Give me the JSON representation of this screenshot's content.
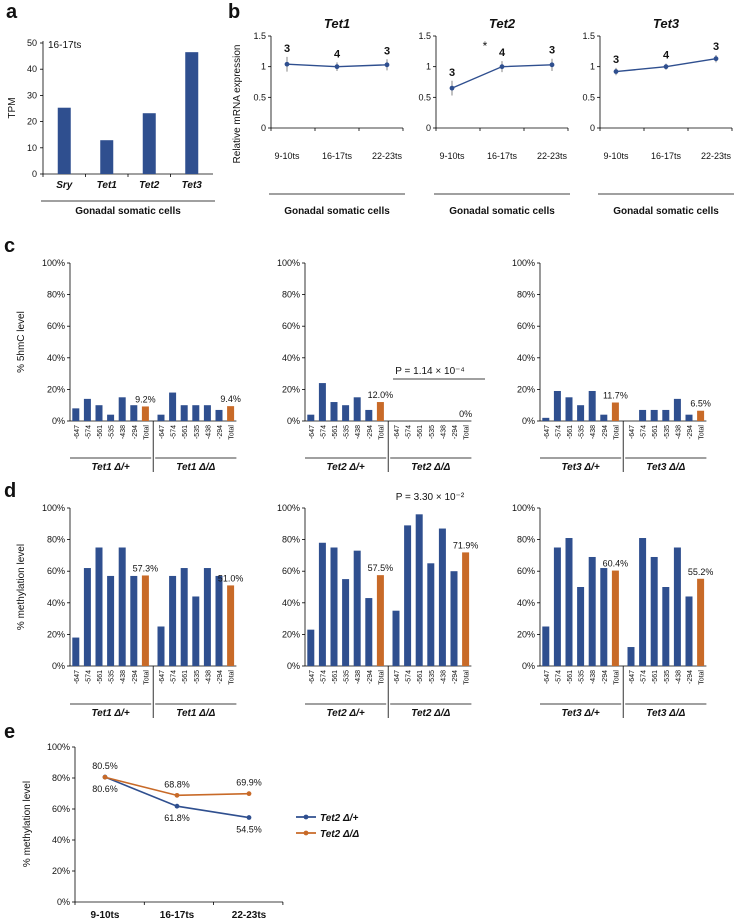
{
  "panel_letters": [
    "a",
    "b",
    "c",
    "d",
    "e"
  ],
  "colors": {
    "bar": "#2f4f8f",
    "total": "#c86a28",
    "line_het": "#2f4f8f",
    "line_ko": "#c86a28",
    "axis": "#000000"
  },
  "chart_data": [
    {
      "panel": "a",
      "type": "bar",
      "annotation": "16-17ts",
      "categories": [
        "Sry",
        "Tet1",
        "Tet2",
        "Tet3"
      ],
      "values": [
        25.3,
        12.9,
        23.2,
        46.5
      ],
      "ylabel": "TPM",
      "xlabel": "Gonadal somatic cells",
      "ylim": [
        0,
        50
      ],
      "yticks": [
        0,
        10,
        20,
        30,
        40,
        50
      ]
    },
    {
      "panel": "b",
      "type": "line",
      "ylabel": "Relative mRNA expression",
      "x": [
        "9-10ts",
        "16-17ts",
        "22-23ts"
      ],
      "xlabel": "Gonadal somatic cells",
      "ylim": [
        0,
        1.5
      ],
      "yticks": [
        "0",
        "0.5",
        "1",
        "1.5"
      ],
      "subplots": [
        {
          "title": "Tet1",
          "values": [
            1.04,
            1.0,
            1.03
          ],
          "errors": [
            0.12,
            0.07,
            0.09
          ],
          "n": [
            "3",
            "4",
            "3"
          ],
          "sig": ""
        },
        {
          "title": "Tet2",
          "values": [
            0.65,
            1.0,
            1.03
          ],
          "errors": [
            0.12,
            0.09,
            0.1
          ],
          "n": [
            "3",
            "4",
            "3"
          ],
          "sig": "*"
        },
        {
          "title": "Tet3",
          "values": [
            0.92,
            1.0,
            1.13
          ],
          "errors": [
            0.06,
            0.05,
            0.06
          ],
          "n": [
            "3",
            "4",
            "3"
          ],
          "sig": ""
        }
      ]
    },
    {
      "panel": "c",
      "type": "bar",
      "ylabel": "% 5hmC level",
      "ylim": [
        0,
        100
      ],
      "yticks": [
        "0%",
        "20%",
        "40%",
        "60%",
        "80%",
        "100%"
      ],
      "categories": [
        "-647",
        "-574",
        "-561",
        "-535",
        "-438",
        "-294",
        "Total"
      ],
      "subplots": [
        {
          "groups": [
            {
              "label": "Tet1 Δ/+",
              "values": [
                8,
                14,
                10,
                4,
                15,
                10,
                9.2
              ],
              "total_label": "9.2%"
            },
            {
              "label": "Tet1 Δ/Δ",
              "values": [
                4,
                18,
                10,
                10,
                10,
                7,
                9.4
              ],
              "total_label": "9.4%"
            }
          ]
        },
        {
          "groups": [
            {
              "label": "Tet2 Δ/+",
              "values": [
                4,
                24,
                12,
                10,
                15,
                7,
                12.0
              ],
              "total_label": "12.0%"
            },
            {
              "label": "Tet2 Δ/Δ",
              "values": [
                0,
                0,
                0,
                0,
                0,
                0,
                0
              ],
              "total_label": "0%"
            }
          ],
          "pvalue": "P = 1.14 × 10⁻⁴"
        },
        {
          "groups": [
            {
              "label": "Tet3 Δ/+",
              "values": [
                2,
                19,
                15,
                10,
                19,
                4,
                11.7
              ],
              "total_label": "11.7%"
            },
            {
              "label": "Tet3 Δ/Δ",
              "values": [
                0,
                7,
                7,
                7,
                14,
                4,
                6.5
              ],
              "total_label": "6.5%"
            }
          ]
        }
      ]
    },
    {
      "panel": "d",
      "type": "bar",
      "ylabel": "% methylation level",
      "ylim": [
        0,
        100
      ],
      "yticks": [
        "0%",
        "20%",
        "40%",
        "60%",
        "80%",
        "100%"
      ],
      "categories": [
        "-647",
        "-574",
        "-561",
        "-535",
        "-438",
        "-294",
        "Total"
      ],
      "subplots": [
        {
          "groups": [
            {
              "label": "Tet1 Δ/+",
              "values": [
                18,
                62,
                75,
                57,
                75,
                57,
                57.3
              ],
              "total_label": "57.3%"
            },
            {
              "label": "Tet1 Δ/Δ",
              "values": [
                25,
                57,
                62,
                44,
                62,
                57,
                51.0
              ],
              "total_label": "51.0%"
            }
          ]
        },
        {
          "groups": [
            {
              "label": "Tet2 Δ/+",
              "values": [
                23,
                78,
                75,
                55,
                73,
                43,
                57.5
              ],
              "total_label": "57.5%"
            },
            {
              "label": "Tet2 Δ/Δ",
              "values": [
                35,
                89,
                96,
                65,
                87,
                60,
                71.9
              ],
              "total_label": "71.9%"
            }
          ],
          "pvalue": "P = 3.30 × 10⁻²"
        },
        {
          "groups": [
            {
              "label": "Tet3 Δ/+",
              "values": [
                25,
                75,
                81,
                50,
                69,
                62,
                60.4
              ],
              "total_label": "60.4%"
            },
            {
              "label": "Tet3 Δ/Δ",
              "values": [
                12,
                81,
                69,
                50,
                75,
                44,
                55.2
              ],
              "total_label": "55.2%"
            }
          ]
        }
      ]
    },
    {
      "panel": "e",
      "type": "line",
      "ylabel": "% methylation level",
      "x": [
        "9-10ts",
        "16-17ts",
        "22-23ts"
      ],
      "ylim": [
        0,
        100
      ],
      "yticks": [
        "0%",
        "20%",
        "40%",
        "60%",
        "80%",
        "100%"
      ],
      "series": [
        {
          "name": "Tet2 Δ/+",
          "values": [
            80.6,
            61.8,
            54.5
          ],
          "labels": [
            "80.6%",
            "61.8%",
            "54.5%"
          ]
        },
        {
          "name": "Tet2 Δ/Δ",
          "values": [
            80.5,
            68.8,
            69.9
          ],
          "labels": [
            "80.5%",
            "68.8%",
            "69.9%"
          ]
        }
      ],
      "legend": "right"
    }
  ]
}
